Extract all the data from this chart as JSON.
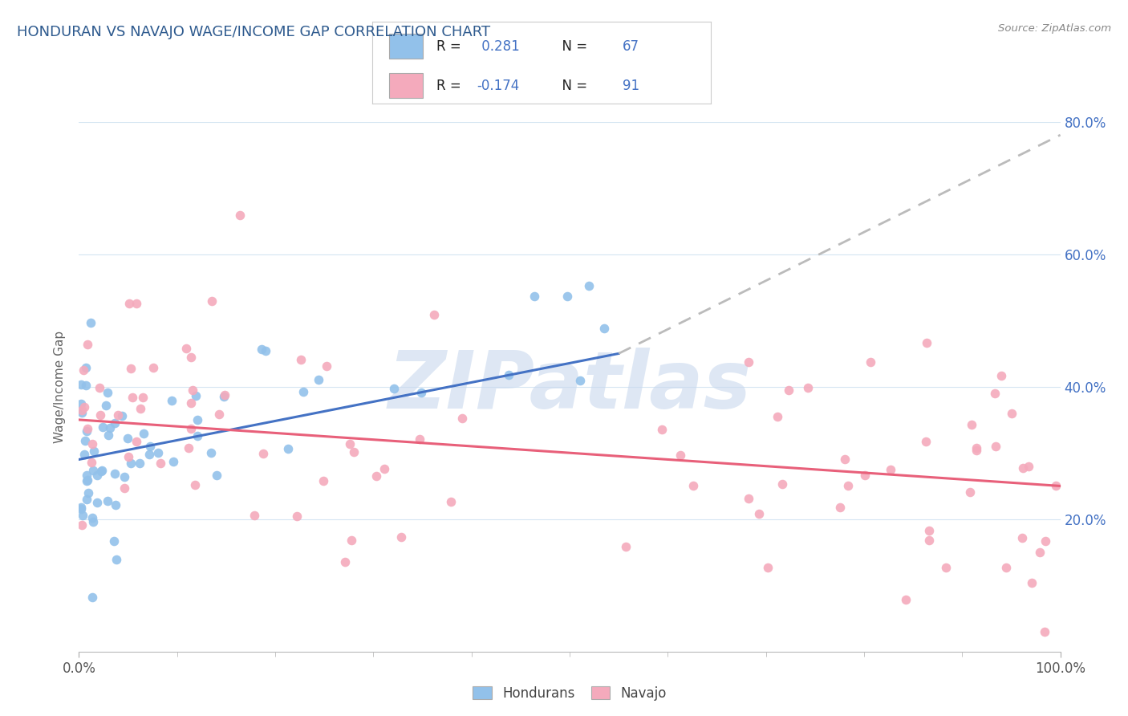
{
  "title": "HONDURAN VS NAVAJO WAGE/INCOME GAP CORRELATION CHART",
  "source_text": "Source: ZipAtlas.com",
  "ylabel": "Wage/Income Gap",
  "honduran_R": 0.281,
  "honduran_N": 67,
  "navajo_R": -0.174,
  "navajo_N": 91,
  "blue_color": "#92C1EA",
  "pink_color": "#F4AABC",
  "blue_line_color": "#4472C4",
  "pink_line_color": "#E8607A",
  "dash_line_color": "#BBBBBB",
  "title_color": "#2E5A8E",
  "bg_color": "#FFFFFF",
  "grid_color": "#D5E5F2",
  "right_axis_color": "#4472C4",
  "xmin": 0.0,
  "xmax": 100.0,
  "ymin": 0.0,
  "ymax": 80.0,
  "ytick_values": [
    0,
    20,
    40,
    60,
    80
  ],
  "right_ytick_labels": [
    "20.0%",
    "40.0%",
    "60.0%",
    "80.0%"
  ],
  "right_ytick_values": [
    20,
    40,
    60,
    80
  ],
  "blue_line_x0": 0.0,
  "blue_line_y0": 29.0,
  "blue_line_x1": 55.0,
  "blue_line_y1": 45.0,
  "dash_line_x0": 55.0,
  "dash_line_y0": 45.0,
  "dash_line_x1": 100.0,
  "dash_line_y1": 78.0,
  "pink_line_x0": 0.0,
  "pink_line_y0": 35.0,
  "pink_line_x1": 100.0,
  "pink_line_y1": 25.0,
  "watermark_text": "ZIPatlas",
  "watermark_color": "#C8D8EE",
  "watermark_alpha": 0.6
}
